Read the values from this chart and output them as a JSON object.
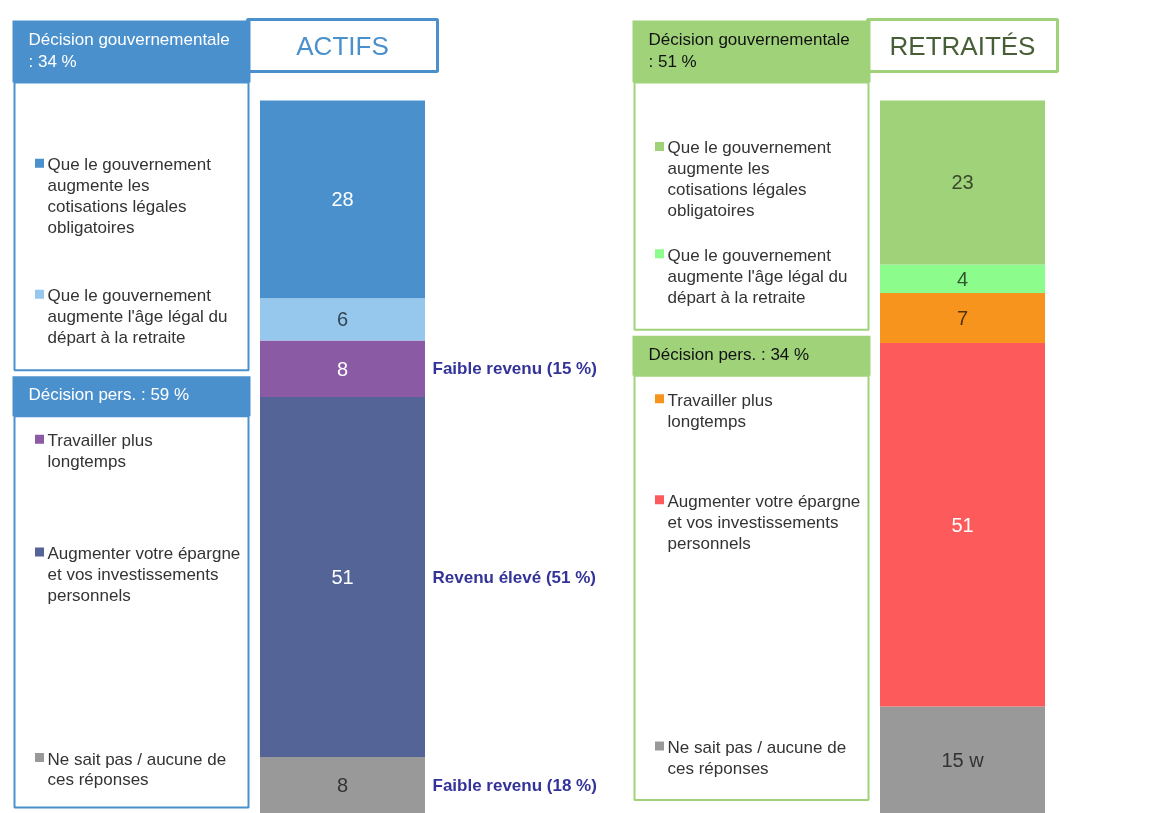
{
  "chart_data": [
    {
      "type": "bar",
      "title": "ACTIFS",
      "categories": [
        null
      ],
      "stacked": true,
      "data_labels": true,
      "legend": "left",
      "series": [
        {
          "name": "Ne sait pas / aucune de ces réponses",
          "color": "#999999",
          "values": [
            8
          ]
        },
        {
          "name": "Augmenter votre épargne et vos investissements personnels",
          "color": "#546496",
          "values": [
            51
          ]
        },
        {
          "name": "Travailler plus longtemps",
          "color": "#8b5aa5",
          "values": [
            8
          ]
        },
        {
          "name": "Que le gouvernement augmente l'âge légal du départ à la retraite",
          "color": "#95c8ec",
          "values": [
            6
          ]
        },
        {
          "name": "Que le gouvernement augmente les cotisations légales obligatoires",
          "color": "#4a90cd",
          "values": [
            28
          ]
        }
      ],
      "annotations": [
        "Décision gouvernementale : 34 %",
        "Décision pers. : 59 %",
        "Faible revenu (15 %)",
        "Revenu élevé (51 %)",
        "Faible revenu (18 %)"
      ]
    },
    {
      "type": "bar",
      "title": "RETRAITÉS",
      "categories": [
        null
      ],
      "stacked": true,
      "legend": "left",
      "series": [
        {
          "name": "Ne sait pas / aucune de ces réponses",
          "color": "#999999",
          "values": [
            15
          ],
          "value_labels": [
            "15 w"
          ]
        },
        {
          "name": "Augmenter votre épargne et vos investissements personnels",
          "color": "#fd5b5b",
          "values": [
            51
          ],
          "value_labels": [
            "51"
          ]
        },
        {
          "name": "Travailler plus longtemps",
          "color": "#f7941d",
          "values": [
            7
          ],
          "value_labels": [
            "7"
          ]
        },
        {
          "name": "Que le gouvernement augmente l'âge légal du départ à la retraite",
          "color": "#8cfc8c",
          "values": [
            4
          ],
          "value_labels": [
            "4"
          ]
        },
        {
          "name": "Que le gouvernement augmente les cotisations légales obligatoires",
          "color": "#a0d27a",
          "values": [
            23
          ],
          "value_labels": [
            "23"
          ]
        }
      ],
      "annotations": [
        "Décision gouvernementale : 51 %",
        "Décision pers. : 34 %"
      ]
    }
  ]
}
